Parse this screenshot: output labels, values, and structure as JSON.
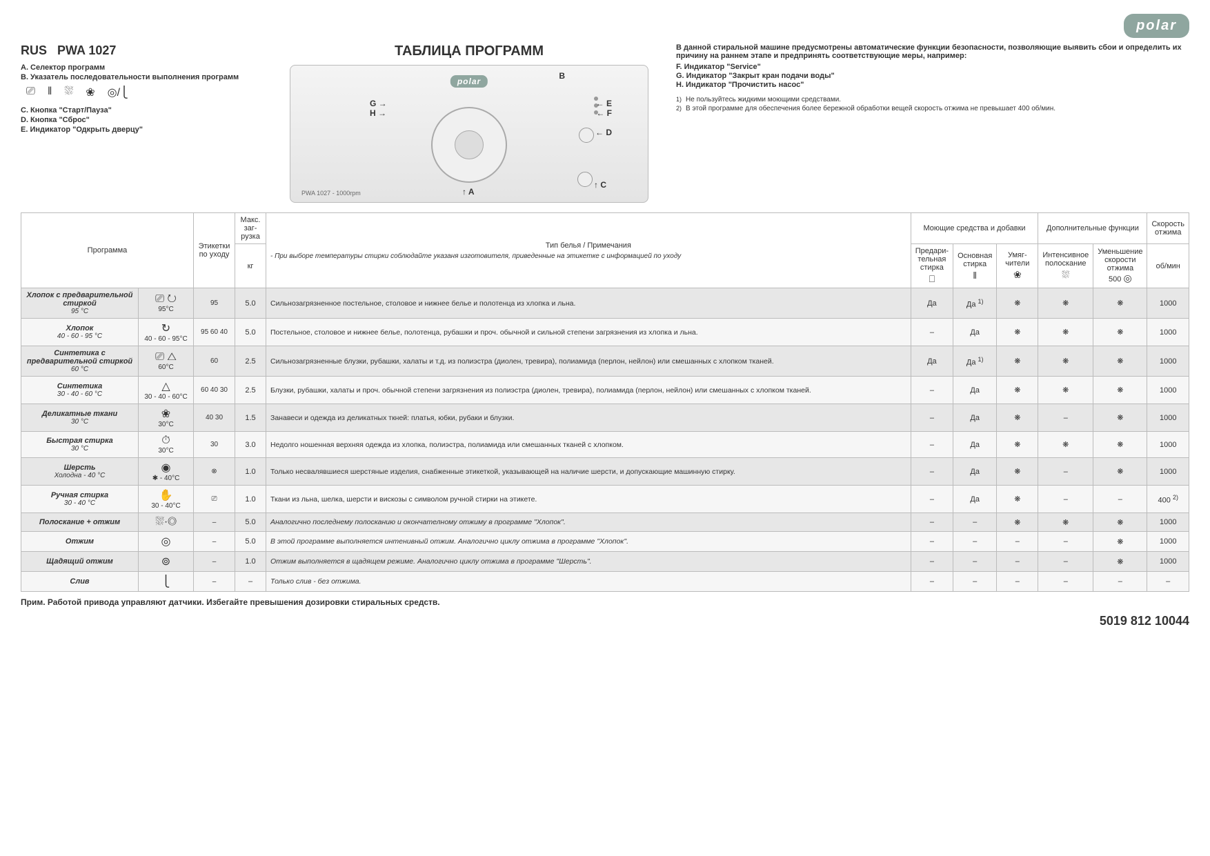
{
  "brand": "polar",
  "brand_bg": "#8fa69f",
  "model_prefix": "RUS",
  "model": "PWA 1027",
  "page_title": "ТАБЛИЦА ПРОГРАММ",
  "panel_text": "PWA 1027 - 1000rpm",
  "legend_left": [
    {
      "k": "A.",
      "v": "Селектор программ"
    },
    {
      "k": "B.",
      "v": "Указатель последовательности выполнения программ"
    },
    {
      "k": "C.",
      "v": "Кнопка \"Старт/Пауза\""
    },
    {
      "k": "D.",
      "v": "Кнопка \"Сброс\""
    },
    {
      "k": "E.",
      "v": "Индикатор \"Одкрыть дверцу\""
    }
  ],
  "right_intro": "В данной стиральной машине предусмотрены автоматические функции безопасности, позволяющие выявить сбои и определить их причину на раннем этапе и предпринять соответствующие меры, например:",
  "right_inds": [
    {
      "k": "F.",
      "v": "Индикатор \"Service\""
    },
    {
      "k": "G.",
      "v": "Индикатор \"Закрыт кран подачи воды\""
    },
    {
      "k": "H.",
      "v": "Индикатор \"Прочистить насос\""
    }
  ],
  "right_notes": [
    {
      "n": "1)",
      "v": "Не пользуйтесь жидкими моющими средствами."
    },
    {
      "n": "2)",
      "v": "В этой программе для обеспечения более бережной обработки вещей скорость отжима не превышает 400 об/мин."
    }
  ],
  "thead": {
    "program": "Программа",
    "care": "Этикетки по уходу",
    "load": "Макс. заг-рузка",
    "load_unit": "кг",
    "type": "Тип белья / Примечания",
    "type_note": "- При выборе температуры стирки соблюдайте указаня изготовителя, приведенные на этикетке с информацией по уходу",
    "detergents": "Моющие средства и добавки",
    "det_pre": "Предари-тельная стирка",
    "det_main": "Основная стирка",
    "det_soft": "Умяг-чители",
    "extra": "Дополнительные функции",
    "ex_rinse": "Интенсивное полоскание",
    "ex_slow": "Уменьшение скорости отжима",
    "ex_slow_val": "500",
    "spin": "Скорость отжима",
    "spin_unit": "об/мин"
  },
  "rows": [
    {
      "name": "Хлопок с предварительной стиркой",
      "temp": "95 °C",
      "sym_ico": "⎚ ↻",
      "sym_t": "95°C",
      "care": "95",
      "load": "5.0",
      "desc": "Сильнозагрязненное постельное, столовое и нижнее белье и полотенца из хлопка и льна.",
      "pre": "Да",
      "main": "Да ",
      "main_sup": "1)",
      "soft": "❋",
      "rinse": "❋",
      "slow": "❋",
      "spin": "1000"
    },
    {
      "name": "Хлопок",
      "temp": "40 - 60 - 95 °C",
      "sym_ico": "↻",
      "sym_t": "40 - 60 - 95°C",
      "care": "95 60 40",
      "load": "5.0",
      "desc": "Постельное, столовое и нижнее белье, полотенца, рубашки и проч. обычной и сильной степени загрязнения из хлопка и льна.",
      "pre": "–",
      "main": "Да",
      "soft": "❋",
      "rinse": "❋",
      "slow": "❋",
      "spin": "1000"
    },
    {
      "name": "Синтетика с предварительной стиркой",
      "temp": "60 °C",
      "sym_ico": "⎚ △",
      "sym_t": "60°C",
      "care": "60",
      "load": "2.5",
      "desc": "Сильнозагрязненные блузки, рубашки, халаты и т.д. из полиэстра (диолен, тревира), полиамида (перлон, нейлон) или смешанных с хлопком тканей.",
      "pre": "Да",
      "main": "Да ",
      "main_sup": "1)",
      "soft": "❋",
      "rinse": "❋",
      "slow": "❋",
      "spin": "1000"
    },
    {
      "name": "Синтетика",
      "temp": "30 - 40 - 60 °C",
      "sym_ico": "△",
      "sym_t": "30 - 40 - 60°C",
      "care": "60 40 30",
      "load": "2.5",
      "desc": "Блузки, рубашки, халаты и проч. обычной степени загрязнения из полиэстра (диолен, тревира), полиамида (перлон, нейлон) или смешанных с хлопком тканей.",
      "pre": "–",
      "main": "Да",
      "soft": "❋",
      "rinse": "❋",
      "slow": "❋",
      "spin": "1000"
    },
    {
      "name": "Деликатные ткани",
      "temp": "30 °C",
      "sym_ico": "❀",
      "sym_t": "30°C",
      "care": "40 30",
      "load": "1.5",
      "desc": "Занавеси и одежда из деликатных ткней: платья, юбки, рубаки и блузки.",
      "pre": "–",
      "main": "Да",
      "soft": "❋",
      "rinse": "–",
      "slow": "❋",
      "spin": "1000"
    },
    {
      "name": "Быстрая стирка",
      "temp": "30 °C",
      "sym_ico": "⏱",
      "sym_t": "30°C",
      "care": "30",
      "load": "3.0",
      "desc": "Недолго ношенная верхняя одежда из хлопка, полиэстра, полиамида или смешанных тканей с хлопком.",
      "pre": "–",
      "main": "Да",
      "soft": "❋",
      "rinse": "❋",
      "slow": "❋",
      "spin": "1000"
    },
    {
      "name": "Шерсть",
      "temp": "Холодна - 40 °C",
      "sym_ico": "◉",
      "sym_t": "✱ - 40°C",
      "care": "⊗",
      "load": "1.0",
      "desc": "Только несвалявшиеся шерстяные изделия, снабженные этикеткой, указывающей на наличие шерсти, и допускающие машинную стирку.",
      "pre": "–",
      "main": "Да",
      "soft": "❋",
      "rinse": "–",
      "slow": "❋",
      "spin": "1000"
    },
    {
      "name": "Ручная стирка",
      "temp": "30 - 40 °C",
      "sym_ico": "✋",
      "sym_t": "30 - 40°C",
      "care": "⎚",
      "load": "1.0",
      "desc": "Ткани из льна, шелка, шерсти и вискозы с символом ручной стирки на этикете.",
      "pre": "–",
      "main": "Да",
      "soft": "❋",
      "rinse": "–",
      "slow": "–",
      "spin": "400 ",
      "spin_sup": "2)"
    },
    {
      "name": "Полоскание + отжим",
      "temp": "",
      "sym_ico": "⛆·◎",
      "sym_t": "",
      "care": "–",
      "load": "5.0",
      "desc": "Аналогично последнему полосканию и окончателному отжиму в программе \"Хлопок\".",
      "italic": true,
      "pre": "–",
      "main": "–",
      "soft": "❋",
      "rinse": "❋",
      "slow": "❋",
      "spin": "1000"
    },
    {
      "name": "Отжим",
      "temp": "",
      "sym_ico": "◎",
      "sym_t": "",
      "care": "–",
      "load": "5.0",
      "desc": "В этой программе выполняется интенивный отжим. Аналогично циклу отжима в программе \"Хлопок\".",
      "italic": true,
      "pre": "–",
      "main": "–",
      "soft": "–",
      "rinse": "–",
      "slow": "❋",
      "spin": "1000"
    },
    {
      "name": "Щадящий отжим",
      "temp": "",
      "sym_ico": "⊚",
      "sym_t": "",
      "care": "–",
      "load": "1.0",
      "desc": "Отжим выполняется в щадящем режиме. Аналогично циклу отжима в программе \"Шерсть\".",
      "italic": true,
      "pre": "–",
      "main": "–",
      "soft": "–",
      "rinse": "–",
      "slow": "❋",
      "spin": "1000"
    },
    {
      "name": "Слив",
      "temp": "",
      "sym_ico": "⎩",
      "sym_t": "",
      "care": "–",
      "load": "–",
      "desc": "Только слив - без отжима.",
      "italic": true,
      "pre": "–",
      "main": "–",
      "soft": "–",
      "rinse": "–",
      "slow": "–",
      "spin": "–"
    }
  ],
  "footer_note": "Прим. Работой привода управляют датчики. Избегайте превышения дозировки стиральных средств.",
  "doc_num": "5019 812 10044"
}
